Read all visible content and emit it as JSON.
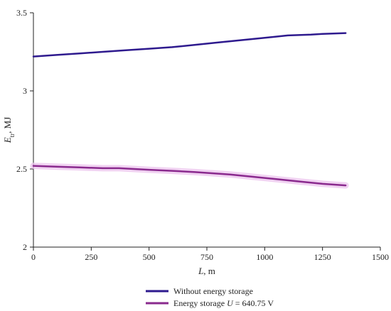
{
  "chart_data": {
    "type": "line",
    "xlabel": {
      "var": "L",
      "unit": ", m"
    },
    "ylabel": {
      "var": "E",
      "sub": "tr",
      "unit": ", MJ"
    },
    "xlim": [
      0,
      1500
    ],
    "ylim": [
      2,
      3.5
    ],
    "xticks": [
      0,
      250,
      500,
      750,
      1000,
      1250,
      1500
    ],
    "yticks": [
      2,
      2.5,
      3,
      3.5
    ],
    "ytick_labels": [
      "2",
      "2.5",
      "3",
      "3.5"
    ],
    "grid": false,
    "legend_position": "bottom-center",
    "series": [
      {
        "name": "Without energy storage",
        "color": "#2e1a8e",
        "x": [
          0,
          100,
          200,
          300,
          400,
          500,
          600,
          700,
          800,
          900,
          1000,
          1100,
          1200,
          1250,
          1350
        ],
        "values": [
          3.22,
          3.23,
          3.24,
          3.25,
          3.26,
          3.27,
          3.28,
          3.295,
          3.31,
          3.325,
          3.34,
          3.355,
          3.36,
          3.365,
          3.37
        ]
      },
      {
        "name_prefix": "Energy storage ",
        "name_var": "U",
        "name_suffix": " = 640.75 V",
        "color": "#8a2a8e",
        "band_color": "#ecc4ee",
        "x": [
          0,
          100,
          200,
          300,
          370,
          500,
          600,
          700,
          850,
          950,
          1050,
          1150,
          1250,
          1350
        ],
        "values": [
          2.52,
          2.515,
          2.51,
          2.505,
          2.505,
          2.495,
          2.488,
          2.48,
          2.465,
          2.45,
          2.435,
          2.42,
          2.405,
          2.395
        ]
      }
    ]
  }
}
